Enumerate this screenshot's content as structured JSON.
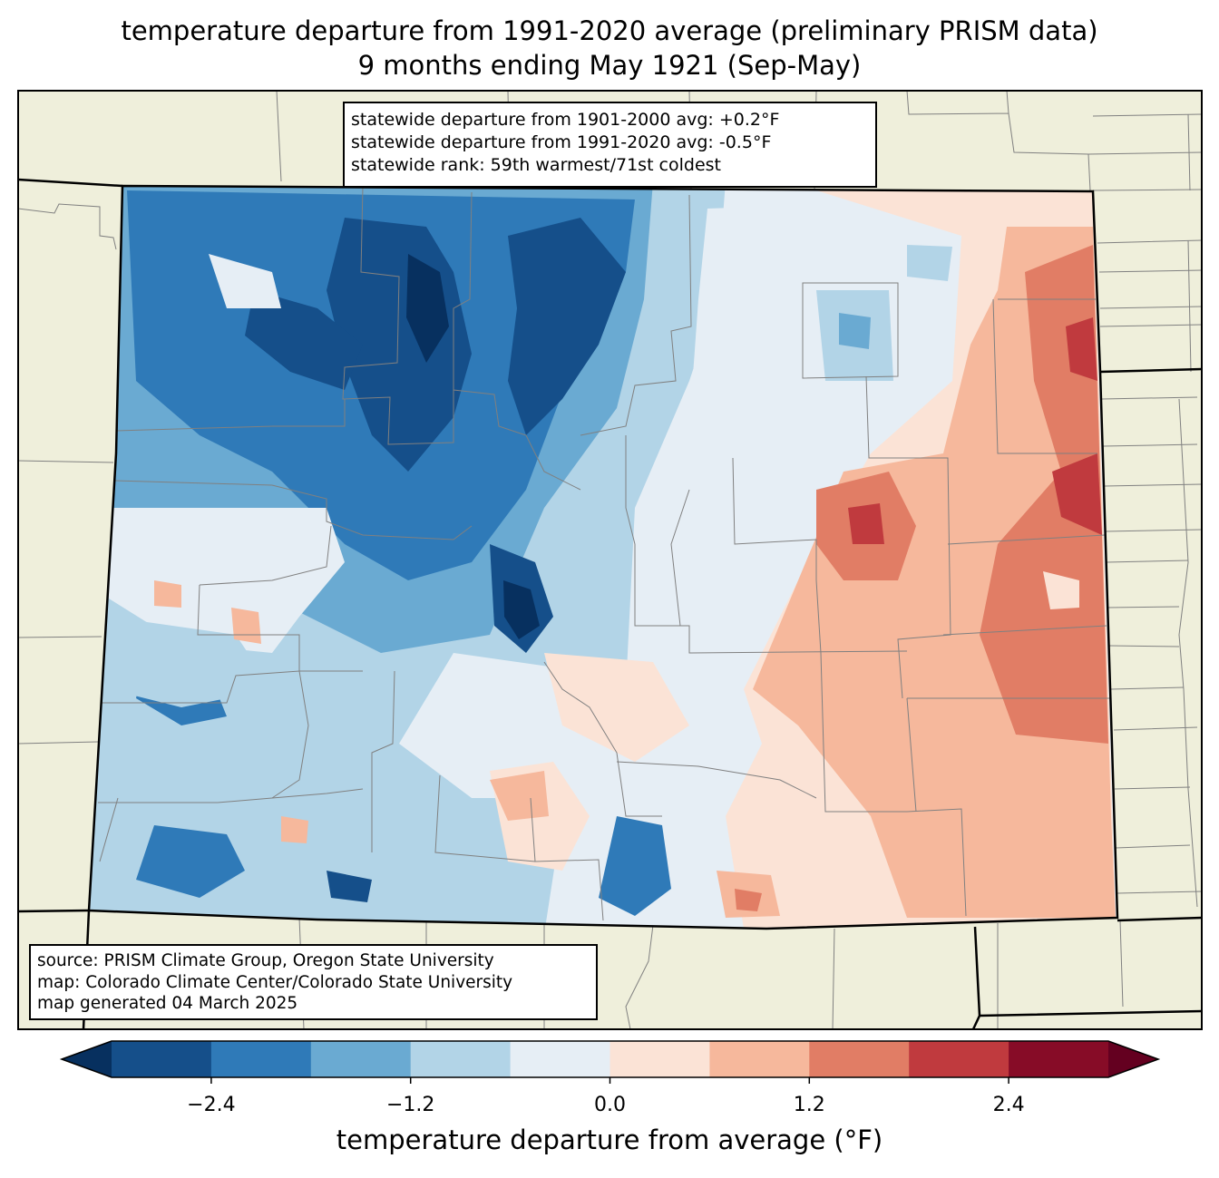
{
  "title": {
    "line1": "temperature departure from 1991-2020 average (preliminary PRISM data)",
    "line2": "9 months ending May 1921 (Sep-May)"
  },
  "stats": {
    "line1": "statewide departure from 1901-2000 avg: +0.2°F",
    "line2": "statewide departure from 1991-2020 avg: -0.5°F",
    "line3": "statewide rank: 59th warmest/71st coldest"
  },
  "source": {
    "line1": "source: PRISM Climate Group, Oregon State University",
    "line2": "map: Colorado Climate Center/Colorado State University",
    "line3": "map generated 04 March 2025"
  },
  "colorbar": {
    "label": "temperature departure from average (°F)",
    "ticks": [
      "−2.4",
      "−1.2",
      "0.0",
      "1.2",
      "2.4"
    ],
    "tick_values": [
      -2.4,
      -1.2,
      0.0,
      1.2,
      2.4
    ],
    "bounds": [
      -3.0,
      -2.4,
      -1.8,
      -1.2,
      -0.6,
      0.0,
      0.6,
      1.2,
      1.8,
      2.4,
      3.0
    ],
    "colors": [
      "#154f8a",
      "#2f7ab8",
      "#6aaad2",
      "#b2d4e7",
      "#e6eef5",
      "#fbe3d6",
      "#f6b89c",
      "#e17d65",
      "#c03a3e",
      "#870c27"
    ],
    "under_color": "#07305f",
    "over_color": "#640020"
  },
  "map_colors": {
    "land_outside": "#efefdb",
    "state_border": "#000000",
    "county_lines": "#808080"
  }
}
